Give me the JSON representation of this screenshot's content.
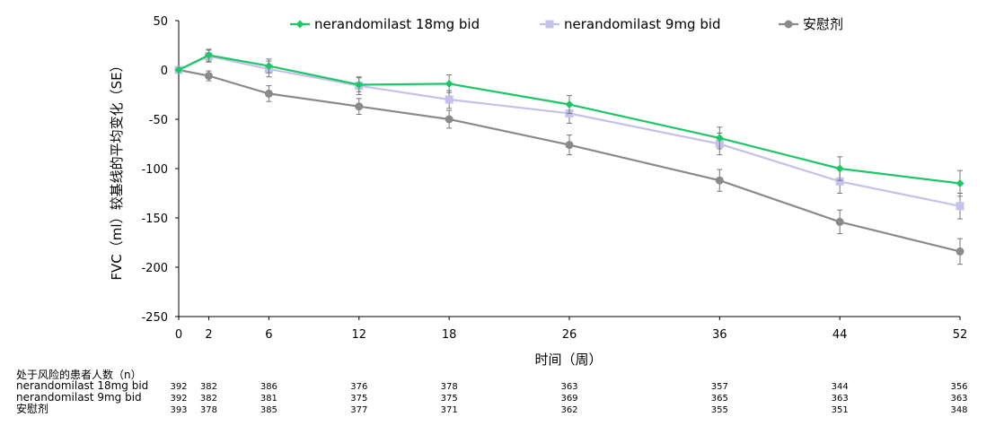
{
  "chart_data": {
    "type": "line",
    "xlabel": "时间（周）",
    "ylabel": "FVC（ml）较基线的平均变化（SE）",
    "x": [
      0,
      2,
      6,
      12,
      18,
      26,
      36,
      44,
      52
    ],
    "ylim": [
      -250,
      50
    ],
    "yticks": [
      50,
      0,
      -50,
      -100,
      -150,
      -200,
      -250
    ],
    "legend_position": "top",
    "series": [
      {
        "name": "nerandomilast 18mg bid",
        "color": "#1ec766",
        "marker": "diamond",
        "values": [
          0,
          15,
          4,
          -15,
          -14,
          -35,
          -69,
          -100,
          -115
        ],
        "se": [
          0,
          6,
          7,
          7,
          9,
          9,
          11,
          12,
          13
        ]
      },
      {
        "name": "nerandomilast 9mg bid",
        "color": "#c4c1ea",
        "marker": "square",
        "values": [
          0,
          14,
          1,
          -16,
          -30,
          -44,
          -75,
          -113,
          -138
        ],
        "se": [
          0,
          6,
          8,
          9,
          9,
          10,
          11,
          12,
          13
        ]
      },
      {
        "name": "安慰剂",
        "color": "#8a8a8a",
        "marker": "circle",
        "values": [
          0,
          -6,
          -24,
          -37,
          -50,
          -76,
          -112,
          -154,
          -184
        ],
        "se": [
          0,
          5,
          8,
          8,
          9,
          10,
          11,
          12,
          13
        ]
      }
    ]
  },
  "risk_table": {
    "title": "处于风险的患者人数（n）",
    "rows": [
      {
        "label": "nerandomilast 18mg bid",
        "values": [
          "392",
          "382",
          "386",
          "376",
          "378",
          "363",
          "357",
          "344",
          "356"
        ]
      },
      {
        "label": "nerandomilast 9mg bid",
        "values": [
          "392",
          "382",
          "381",
          "375",
          "375",
          "369",
          "365",
          "363",
          "363"
        ]
      },
      {
        "label": "安慰剂",
        "values": [
          "393",
          "378",
          "385",
          "377",
          "371",
          "362",
          "355",
          "351",
          "348"
        ]
      }
    ]
  }
}
